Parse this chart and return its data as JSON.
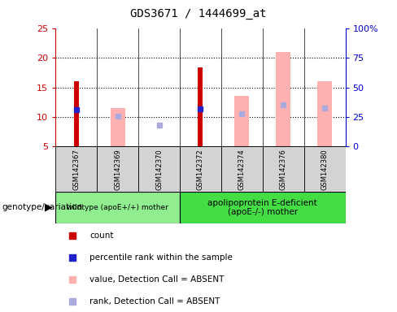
{
  "title": "GDS3671 / 1444699_at",
  "samples": [
    "GSM142367",
    "GSM142369",
    "GSM142370",
    "GSM142372",
    "GSM142374",
    "GSM142376",
    "GSM142380"
  ],
  "count_values": [
    16,
    null,
    null,
    18.3,
    null,
    null,
    null
  ],
  "percentile_rank": [
    11.3,
    null,
    null,
    11.4,
    null,
    null,
    null
  ],
  "pink_bar_top": [
    null,
    11.5,
    null,
    null,
    13.5,
    21,
    16
  ],
  "pink_bar_bottom": [
    5,
    5,
    null,
    5,
    5,
    5,
    5
  ],
  "light_blue_dot": [
    null,
    10.1,
    8.6,
    null,
    10.6,
    12.1,
    11.5
  ],
  "ylim_left": [
    5,
    25
  ],
  "ylim_right": [
    0,
    100
  ],
  "yticks_left": [
    5,
    10,
    15,
    20,
    25
  ],
  "yticks_right": [
    0,
    25,
    50,
    75,
    100
  ],
  "yticklabels_right": [
    "0",
    "25",
    "50",
    "75",
    "100%"
  ],
  "left_yaxis_color": "#cc0000",
  "right_yaxis_color": "#0000cc",
  "bar_color_red": "#cc0000",
  "bar_color_pink": "#ffb0b0",
  "dot_color_blue": "#2222cc",
  "dot_color_lightblue": "#aaaadd",
  "group1_label": "wildtype (apoE+/+) mother",
  "group2_label": "apolipoprotein E-deficient\n(apoE-/-) mother",
  "group1_color": "#90ee90",
  "group2_color": "#44dd44",
  "xlabel_genotype": "genotype/variation",
  "legend_items": [
    {
      "color": "#cc0000",
      "label": "count"
    },
    {
      "color": "#2222cc",
      "label": "percentile rank within the sample"
    },
    {
      "color": "#ffb0b0",
      "label": "value, Detection Call = ABSENT"
    },
    {
      "color": "#aaaadd",
      "label": "rank, Detection Call = ABSENT"
    }
  ],
  "pink_bar_width": 0.35,
  "red_bar_width": 0.12,
  "chart_bg": "#ffffff",
  "label_bg": "#d3d3d3"
}
